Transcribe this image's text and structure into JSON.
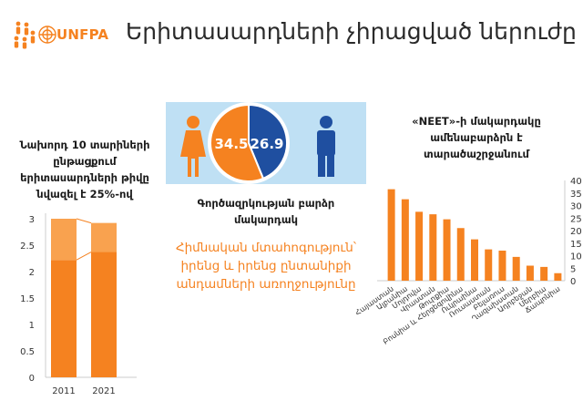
{
  "header": {
    "logo_text": "UNFPA",
    "title": "Երիտասարդների չիրացված ներուժը"
  },
  "colors": {
    "accent": "#f58220",
    "accent_light": "#f9a24f",
    "blue": "#1f4fa0",
    "banner_bg": "#bfe0f4"
  },
  "left_panel": {
    "title": "Նախորդ 10 տարիների ընթացքում երիտասարդների թիվը նվազել է 25%-ով"
  },
  "center_panel": {
    "female_value": "34.5",
    "male_value": "26.9",
    "subtitle": "Գործազրկության բարձր մակարդակ",
    "main_text": "Հիմնական մտահոգություն՝ իրենց և իրենց ընտանիքի անդամների առողջությունը"
  },
  "right_panel": {
    "title": "«NEET»-ի մակարդակը ամենաբարձրն է տարածաշրջանում"
  },
  "chart_data": [
    {
      "type": "bar",
      "categories": [
        "2011",
        "2021"
      ],
      "series": [
        {
          "values": [
            2.22,
            2.37
          ]
        },
        {
          "values": [
            0.78,
            0.55
          ]
        }
      ],
      "totals": [
        3.0,
        2.92
      ],
      "ylim": [
        0,
        3
      ],
      "yticks": [
        0,
        0.5,
        1,
        1.5,
        2,
        2.5,
        3
      ],
      "stacked": true,
      "grid": false
    },
    {
      "type": "pie",
      "values": [
        34.5,
        26.9
      ],
      "labels": [
        "34.5",
        "26.9"
      ]
    },
    {
      "type": "bar",
      "categories": [
        "Հայաստան",
        "Ալբանիա",
        "Մոլդովա",
        "Վրաստան",
        "Թուրքիա",
        "Բոսնիա և Հերցեգովինա",
        "Ուկրաինա",
        "Ռուսաստան",
        "Բելառուս",
        "Ղազախստան",
        "Ադրբեջան",
        "Սերբիա",
        "Ճապոնիա"
      ],
      "values": [
        36.5,
        32.5,
        27.5,
        26.5,
        24.5,
        21.0,
        16.5,
        12.5,
        12.0,
        9.5,
        6.0,
        5.5,
        3.0
      ],
      "ylim": [
        0,
        40
      ],
      "yticks": [
        0,
        5,
        10,
        15,
        20,
        25,
        30,
        35,
        40
      ],
      "grid": false
    }
  ]
}
